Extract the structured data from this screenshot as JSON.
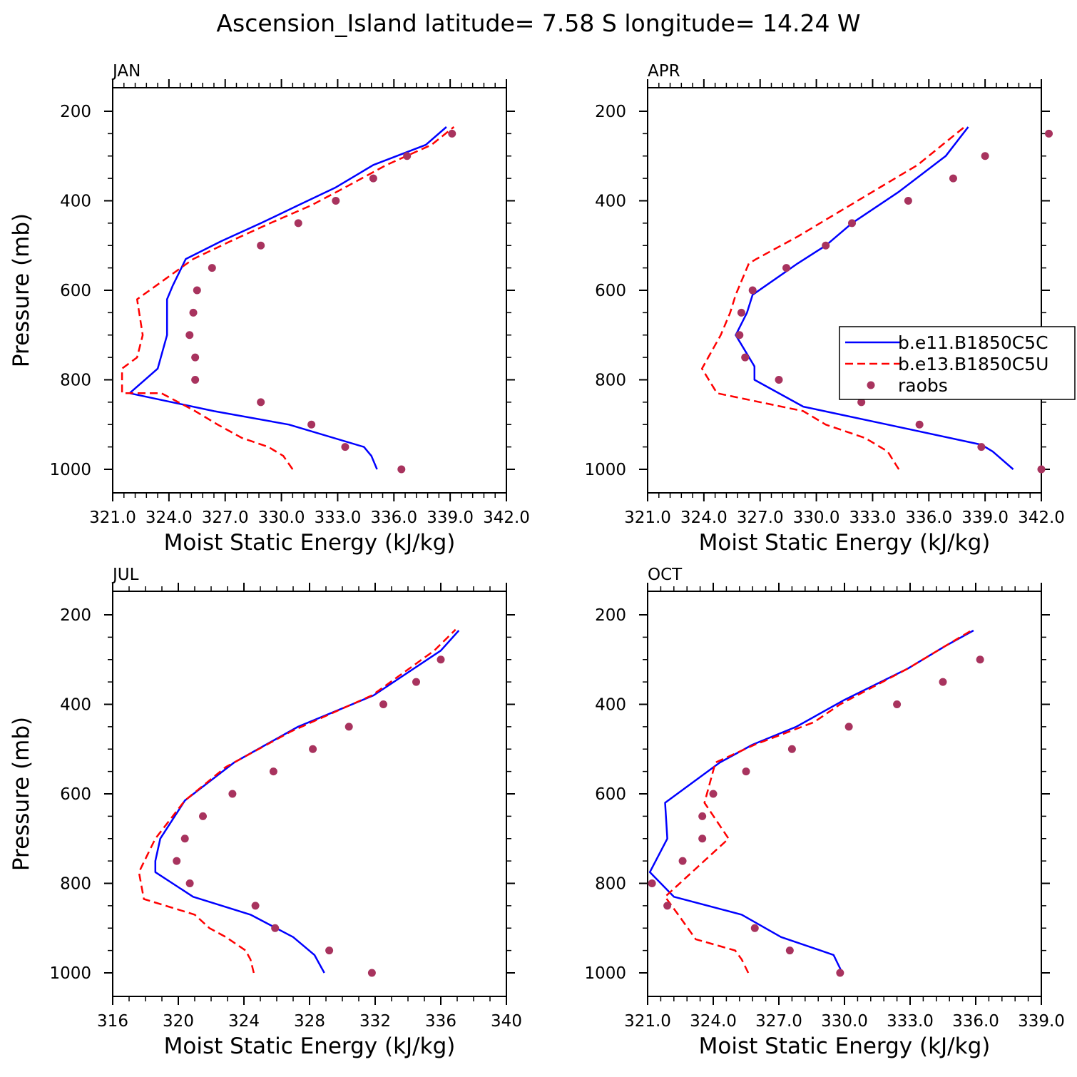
{
  "figure": {
    "title": "Ascension_Island  latitude= 7.58 S longitude= 14.24 W"
  },
  "colors": {
    "b_e11": "#0000ff",
    "b_e13": "#ff0000",
    "raobs": "#a8335e"
  },
  "legend": {
    "items": [
      "b.e11.B1850C5C",
      "b.e13.B1850C5U",
      "raobs"
    ]
  },
  "chart_data": [
    {
      "type": "line",
      "title": "JAN",
      "xlabel": "Moist Static Energy (kJ/kg)",
      "ylabel": "Pressure (mb)",
      "xlim": [
        321,
        342
      ],
      "ylim": [
        1000,
        200
      ],
      "xticks": [
        321,
        324,
        327,
        330,
        333,
        336,
        339,
        342
      ],
      "xtick_labels": [
        "321.0",
        "324.0",
        "327.0",
        "330.0",
        "333.0",
        "336.0",
        "339.0",
        "342.0"
      ],
      "yticks": [
        1000,
        800,
        600,
        400,
        200
      ],
      "ytick_labels": [
        "1000",
        "800",
        "600",
        "400",
        "200"
      ],
      "legend": false,
      "series": [
        {
          "name": "b.e11.B1850C5C",
          "style": "solid",
          "points": [
            [
              335.1,
              1000
            ],
            [
              334.8,
              970
            ],
            [
              334.4,
              950
            ],
            [
              330.4,
              900
            ],
            [
              326.4,
              870
            ],
            [
              321.9,
              830
            ],
            [
              323.4,
              775
            ],
            [
              323.9,
              700
            ],
            [
              323.9,
              620
            ],
            [
              324.2,
              590
            ],
            [
              324.9,
              530
            ],
            [
              326.8,
              490
            ],
            [
              328.9,
              450
            ],
            [
              330.9,
              410
            ],
            [
              332.9,
              370
            ],
            [
              334.9,
              320
            ],
            [
              337.7,
              275
            ],
            [
              338.8,
              235
            ]
          ]
        },
        {
          "name": "b.e13.B1850C5U",
          "style": "dashed",
          "points": [
            [
              330.6,
              1000
            ],
            [
              330.1,
              970
            ],
            [
              329.3,
              950
            ],
            [
              327.9,
              930
            ],
            [
              326.6,
              900
            ],
            [
              325.4,
              870
            ],
            [
              323.6,
              830
            ],
            [
              321.5,
              830
            ],
            [
              321.5,
              775
            ],
            [
              322.3,
              750
            ],
            [
              322.6,
              700
            ],
            [
              322.3,
              620
            ],
            [
              325.3,
              530
            ],
            [
              327.3,
              490
            ],
            [
              329.4,
              450
            ],
            [
              331.6,
              410
            ],
            [
              333.4,
              370
            ],
            [
              335.6,
              320
            ],
            [
              338.0,
              275
            ],
            [
              339.2,
              235
            ]
          ]
        },
        {
          "name": "raobs",
          "style": "markers",
          "points": [
            [
              336.4,
              1000
            ],
            [
              333.4,
              950
            ],
            [
              331.6,
              900
            ],
            [
              328.9,
              850
            ],
            [
              325.4,
              800
            ],
            [
              325.4,
              750
            ],
            [
              325.1,
              700
            ],
            [
              325.3,
              650
            ],
            [
              325.5,
              600
            ],
            [
              326.3,
              550
            ],
            [
              328.9,
              500
            ],
            [
              330.9,
              450
            ],
            [
              332.9,
              400
            ],
            [
              334.9,
              350
            ],
            [
              336.7,
              300
            ],
            [
              339.1,
              250
            ]
          ]
        }
      ]
    },
    {
      "type": "line",
      "title": "APR",
      "xlabel": "Moist Static Energy (kJ/kg)",
      "ylabel": "",
      "xlim": [
        321,
        342
      ],
      "ylim": [
        1000,
        200
      ],
      "xticks": [
        321,
        324,
        327,
        330,
        333,
        336,
        339,
        342
      ],
      "xtick_labels": [
        "321.0",
        "324.0",
        "327.0",
        "330.0",
        "333.0",
        "336.0",
        "339.0",
        "342.0"
      ],
      "yticks": [
        1000,
        800,
        600,
        400,
        200
      ],
      "ytick_labels": [
        "1000",
        "800",
        "600",
        "400",
        "200"
      ],
      "legend": true,
      "legend_position": "right",
      "series": [
        {
          "name": "b.e11.B1850C5C",
          "style": "solid",
          "points": [
            [
              340.5,
              1000
            ],
            [
              339.4,
              960
            ],
            [
              338.8,
              945
            ],
            [
              333.8,
              900
            ],
            [
              329.3,
              860
            ],
            [
              326.7,
              800
            ],
            [
              326.7,
              770
            ],
            [
              325.7,
              700
            ],
            [
              326.3,
              650
            ],
            [
              326.6,
              610
            ],
            [
              329.0,
              540
            ],
            [
              330.5,
              500
            ],
            [
              331.9,
              450
            ],
            [
              334.4,
              380
            ],
            [
              336.9,
              300
            ],
            [
              338.1,
              235
            ]
          ]
        },
        {
          "name": "b.e13.B1850C5U",
          "style": "dashed",
          "points": [
            [
              334.4,
              1000
            ],
            [
              334.1,
              980
            ],
            [
              333.8,
              960
            ],
            [
              332.6,
              930
            ],
            [
              330.5,
              900
            ],
            [
              329.3,
              870
            ],
            [
              324.7,
              830
            ],
            [
              323.9,
              775
            ],
            [
              324.9,
              700
            ],
            [
              325.4,
              650
            ],
            [
              325.7,
              610
            ],
            [
              326.4,
              540
            ],
            [
              326.8,
              530
            ],
            [
              329.0,
              480
            ],
            [
              333.0,
              380
            ],
            [
              335.4,
              320
            ],
            [
              337.9,
              235
            ]
          ]
        },
        {
          "name": "raobs",
          "style": "markers",
          "points": [
            [
              342.0,
              1000
            ],
            [
              338.8,
              950
            ],
            [
              335.5,
              900
            ],
            [
              332.4,
              850
            ],
            [
              328.0,
              800
            ],
            [
              326.2,
              750
            ],
            [
              325.9,
              700
            ],
            [
              326.0,
              650
            ],
            [
              326.6,
              600
            ],
            [
              328.4,
              550
            ],
            [
              330.5,
              500
            ],
            [
              331.9,
              450
            ],
            [
              334.9,
              400
            ],
            [
              337.3,
              350
            ],
            [
              339.0,
              300
            ],
            [
              342.4,
              250
            ]
          ]
        }
      ]
    },
    {
      "type": "line",
      "title": "JUL",
      "xlabel": "Moist Static Energy (kJ/kg)",
      "ylabel": "Pressure (mb)",
      "xlim": [
        316,
        340
      ],
      "ylim": [
        1000,
        200
      ],
      "xticks": [
        316,
        320,
        324,
        328,
        332,
        336,
        340
      ],
      "xtick_labels": [
        "316",
        "320",
        "324",
        "328",
        "332",
        "336",
        "340"
      ],
      "yticks": [
        1000,
        800,
        600,
        400,
        200
      ],
      "ytick_labels": [
        "1000",
        "800",
        "600",
        "400",
        "200"
      ],
      "legend": false,
      "series": [
        {
          "name": "b.e11.B1850C5C",
          "style": "solid",
          "points": [
            [
              328.9,
              1000
            ],
            [
              328.6,
              980
            ],
            [
              328.3,
              960
            ],
            [
              327.0,
              920
            ],
            [
              324.4,
              870
            ],
            [
              320.9,
              830
            ],
            [
              318.6,
              775
            ],
            [
              318.6,
              750
            ],
            [
              318.9,
              700
            ],
            [
              320.4,
              615
            ],
            [
              323.4,
              530
            ],
            [
              327.3,
              450
            ],
            [
              331.9,
              380
            ],
            [
              336.0,
              280
            ],
            [
              337.1,
              235
            ]
          ]
        },
        {
          "name": "b.e13.B1850C5U",
          "style": "dashed",
          "points": [
            [
              324.6,
              1000
            ],
            [
              324.4,
              970
            ],
            [
              324.1,
              950
            ],
            [
              322.9,
              920
            ],
            [
              321.9,
              900
            ],
            [
              321.0,
              870
            ],
            [
              317.9,
              835
            ],
            [
              317.6,
              775
            ],
            [
              318.6,
              700
            ],
            [
              320.4,
              615
            ],
            [
              322.9,
              540
            ],
            [
              326.9,
              460
            ],
            [
              331.8,
              380
            ],
            [
              335.6,
              280
            ],
            [
              336.9,
              233
            ]
          ]
        },
        {
          "name": "raobs",
          "style": "markers",
          "points": [
            [
              331.8,
              1000
            ],
            [
              329.2,
              950
            ],
            [
              325.9,
              900
            ],
            [
              324.7,
              850
            ],
            [
              320.7,
              800
            ],
            [
              319.9,
              750
            ],
            [
              320.4,
              700
            ],
            [
              321.5,
              650
            ],
            [
              323.3,
              600
            ],
            [
              325.8,
              550
            ],
            [
              328.2,
              500
            ],
            [
              330.4,
              450
            ],
            [
              332.5,
              400
            ],
            [
              334.5,
              350
            ],
            [
              336.0,
              300
            ]
          ]
        }
      ]
    },
    {
      "type": "line",
      "title": "OCT",
      "xlabel": "Moist Static Energy (kJ/kg)",
      "ylabel": "",
      "xlim": [
        321,
        339
      ],
      "ylim": [
        1000,
        200
      ],
      "xticks": [
        321,
        324,
        327,
        330,
        333,
        336,
        339
      ],
      "xtick_labels": [
        "321.0",
        "324.0",
        "327.0",
        "330.0",
        "333.0",
        "336.0",
        "339.0"
      ],
      "yticks": [
        1000,
        800,
        600,
        400,
        200
      ],
      "ytick_labels": [
        "1000",
        "800",
        "600",
        "400",
        "200"
      ],
      "legend": false,
      "series": [
        {
          "name": "b.e11.B1850C5C",
          "style": "solid",
          "points": [
            [
              329.9,
              1000
            ],
            [
              329.7,
              980
            ],
            [
              329.5,
              960
            ],
            [
              328.9,
              950
            ],
            [
              327.1,
              920
            ],
            [
              325.3,
              870
            ],
            [
              322.2,
              830
            ],
            [
              321.1,
              775
            ],
            [
              321.9,
              700
            ],
            [
              321.8,
              620
            ],
            [
              324.3,
              530
            ],
            [
              325.8,
              490
            ],
            [
              327.8,
              450
            ],
            [
              330.0,
              390
            ],
            [
              332.9,
              320
            ],
            [
              334.6,
              270
            ],
            [
              335.9,
              235
            ]
          ]
        },
        {
          "name": "b.e13.B1850C5U",
          "style": "dashed",
          "points": [
            [
              325.6,
              1000
            ],
            [
              325.3,
              970
            ],
            [
              325.0,
              950
            ],
            [
              323.2,
              925
            ],
            [
              322.4,
              870
            ],
            [
              321.8,
              830
            ],
            [
              324.7,
              700
            ],
            [
              323.6,
              620
            ],
            [
              324.1,
              530
            ],
            [
              325.9,
              490
            ],
            [
              328.6,
              440
            ],
            [
              329.8,
              400
            ],
            [
              332.9,
              320
            ],
            [
              334.6,
              270
            ],
            [
              335.8,
              235
            ]
          ]
        },
        {
          "name": "raobs",
          "style": "markers",
          "points": [
            [
              329.8,
              1000
            ],
            [
              327.5,
              950
            ],
            [
              325.9,
              900
            ],
            [
              321.9,
              850
            ],
            [
              321.2,
              800
            ],
            [
              322.6,
              750
            ],
            [
              323.5,
              700
            ],
            [
              323.5,
              650
            ],
            [
              324.0,
              600
            ],
            [
              325.5,
              550
            ],
            [
              327.6,
              500
            ],
            [
              330.2,
              450
            ],
            [
              332.4,
              400
            ],
            [
              334.5,
              350
            ],
            [
              336.2,
              300
            ]
          ]
        }
      ]
    }
  ]
}
